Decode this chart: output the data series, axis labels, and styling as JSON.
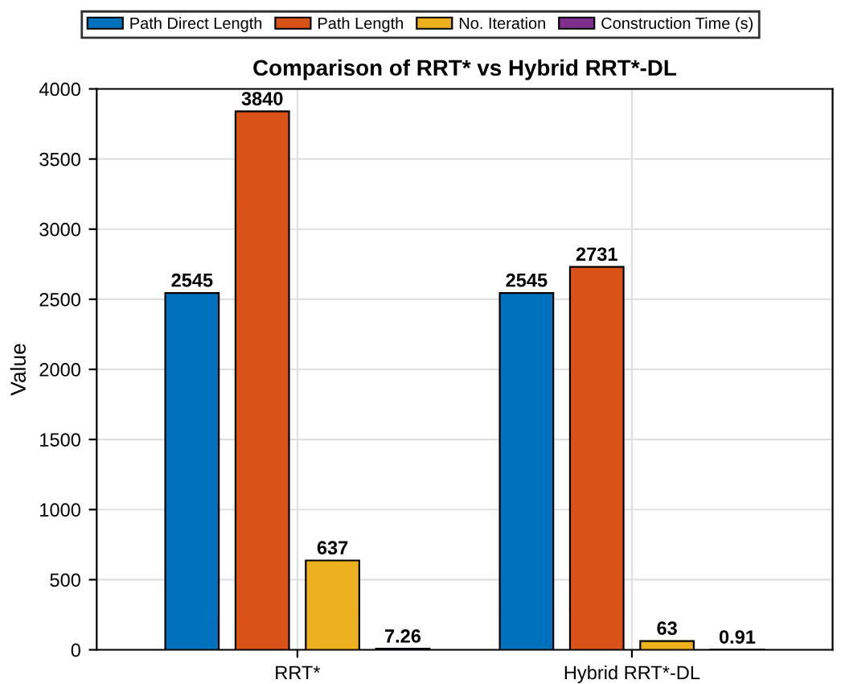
{
  "chart_data": {
    "type": "bar",
    "title": "Comparison of RRT* vs Hybrid RRT*-DL",
    "ylabel": "Value",
    "categories": [
      "RRT*",
      "Hybrid RRT*-DL"
    ],
    "series": [
      {
        "name": "Path Direct Length",
        "color": "#0072bd",
        "values": [
          2545,
          2545
        ]
      },
      {
        "name": "Path Length",
        "color": "#d95319",
        "values": [
          3840,
          2731
        ]
      },
      {
        "name": "No. Iteration",
        "color": "#edb120",
        "values": [
          637,
          63
        ]
      },
      {
        "name": "Construction Time (s)",
        "color": "#7e2f8e",
        "values": [
          7.26,
          0.91
        ]
      }
    ],
    "ylim": [
      0,
      4000
    ],
    "yticks": [
      0,
      500,
      1000,
      1500,
      2000,
      2500,
      3000,
      3500,
      4000
    ],
    "grid": true,
    "legend": "top",
    "data_labels": true
  }
}
